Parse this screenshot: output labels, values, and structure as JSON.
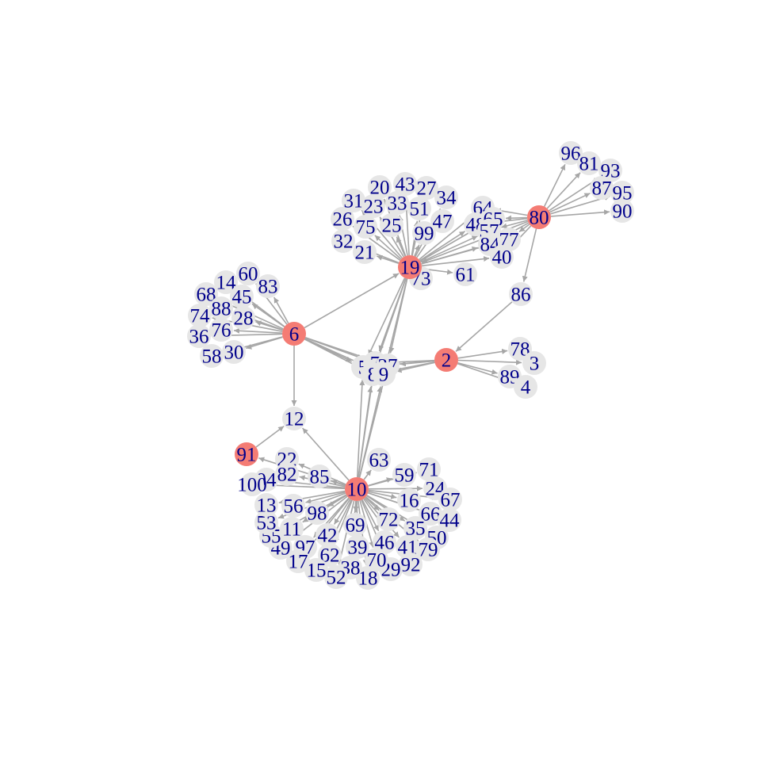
{
  "graph": {
    "directed": true,
    "colors": {
      "hub_fill": "#f47c74",
      "leaf_fill": "#e6e6e6",
      "edge": "#a6a6a6",
      "label": "#00008b"
    },
    "hubs": [
      "19",
      "80",
      "6",
      "2",
      "91",
      "10"
    ],
    "nodes": [
      {
        "id": "19"
      },
      {
        "id": "80"
      },
      {
        "id": "6"
      },
      {
        "id": "2"
      },
      {
        "id": "91"
      },
      {
        "id": "10"
      },
      {
        "id": "12"
      },
      {
        "id": "86"
      },
      {
        "id": "5"
      },
      {
        "id": "7"
      },
      {
        "id": "37"
      },
      {
        "id": "8"
      },
      {
        "id": "9"
      },
      {
        "id": "31"
      },
      {
        "id": "20"
      },
      {
        "id": "43"
      },
      {
        "id": "27"
      },
      {
        "id": "23"
      },
      {
        "id": "33"
      },
      {
        "id": "51"
      },
      {
        "id": "34"
      },
      {
        "id": "26"
      },
      {
        "id": "75"
      },
      {
        "id": "25"
      },
      {
        "id": "47"
      },
      {
        "id": "99"
      },
      {
        "id": "32"
      },
      {
        "id": "21"
      },
      {
        "id": "73"
      },
      {
        "id": "61"
      },
      {
        "id": "64"
      },
      {
        "id": "48"
      },
      {
        "id": "65"
      },
      {
        "id": "57"
      },
      {
        "id": "84"
      },
      {
        "id": "77"
      },
      {
        "id": "40"
      },
      {
        "id": "96"
      },
      {
        "id": "81"
      },
      {
        "id": "93"
      },
      {
        "id": "87"
      },
      {
        "id": "95"
      },
      {
        "id": "90"
      },
      {
        "id": "14"
      },
      {
        "id": "60"
      },
      {
        "id": "83"
      },
      {
        "id": "68"
      },
      {
        "id": "45"
      },
      {
        "id": "88"
      },
      {
        "id": "74"
      },
      {
        "id": "28"
      },
      {
        "id": "76"
      },
      {
        "id": "36"
      },
      {
        "id": "58"
      },
      {
        "id": "30"
      },
      {
        "id": "78"
      },
      {
        "id": "3"
      },
      {
        "id": "89"
      },
      {
        "id": "4"
      },
      {
        "id": "22"
      },
      {
        "id": "82"
      },
      {
        "id": "94"
      },
      {
        "id": "100"
      },
      {
        "id": "85"
      },
      {
        "id": "63"
      },
      {
        "id": "59"
      },
      {
        "id": "71"
      },
      {
        "id": "24"
      },
      {
        "id": "16"
      },
      {
        "id": "67"
      },
      {
        "id": "66"
      },
      {
        "id": "44"
      },
      {
        "id": "72"
      },
      {
        "id": "35"
      },
      {
        "id": "50"
      },
      {
        "id": "46"
      },
      {
        "id": "41"
      },
      {
        "id": "79"
      },
      {
        "id": "92"
      },
      {
        "id": "29"
      },
      {
        "id": "70"
      },
      {
        "id": "18"
      },
      {
        "id": "38"
      },
      {
        "id": "39"
      },
      {
        "id": "69"
      },
      {
        "id": "42"
      },
      {
        "id": "62"
      },
      {
        "id": "52"
      },
      {
        "id": "15"
      },
      {
        "id": "97"
      },
      {
        "id": "17"
      },
      {
        "id": "49"
      },
      {
        "id": "55"
      },
      {
        "id": "53"
      },
      {
        "id": "11"
      },
      {
        "id": "13"
      },
      {
        "id": "56"
      },
      {
        "id": "98"
      }
    ],
    "edges": [
      [
        "6",
        "19"
      ],
      [
        "6",
        "12"
      ],
      [
        "6",
        "5"
      ],
      [
        "6",
        "7"
      ],
      [
        "6",
        "8"
      ],
      [
        "6",
        "9"
      ],
      [
        "6",
        "37"
      ],
      [
        "6",
        "14"
      ],
      [
        "6",
        "60"
      ],
      [
        "6",
        "83"
      ],
      [
        "6",
        "68"
      ],
      [
        "6",
        "45"
      ],
      [
        "6",
        "88"
      ],
      [
        "6",
        "74"
      ],
      [
        "6",
        "28"
      ],
      [
        "6",
        "76"
      ],
      [
        "6",
        "36"
      ],
      [
        "6",
        "58"
      ],
      [
        "6",
        "30"
      ],
      [
        "19",
        "5"
      ],
      [
        "19",
        "7"
      ],
      [
        "19",
        "37"
      ],
      [
        "19",
        "8"
      ],
      [
        "19",
        "9"
      ],
      [
        "19",
        "31"
      ],
      [
        "19",
        "20"
      ],
      [
        "19",
        "43"
      ],
      [
        "19",
        "27"
      ],
      [
        "19",
        "23"
      ],
      [
        "19",
        "33"
      ],
      [
        "19",
        "51"
      ],
      [
        "19",
        "34"
      ],
      [
        "19",
        "26"
      ],
      [
        "19",
        "75"
      ],
      [
        "19",
        "25"
      ],
      [
        "19",
        "47"
      ],
      [
        "19",
        "99"
      ],
      [
        "19",
        "32"
      ],
      [
        "19",
        "21"
      ],
      [
        "19",
        "73"
      ],
      [
        "19",
        "61"
      ],
      [
        "19",
        "64"
      ],
      [
        "19",
        "48"
      ],
      [
        "19",
        "65"
      ],
      [
        "19",
        "57"
      ],
      [
        "19",
        "84"
      ],
      [
        "19",
        "77"
      ],
      [
        "19",
        "40"
      ],
      [
        "80",
        "19"
      ],
      [
        "80",
        "64"
      ],
      [
        "80",
        "48"
      ],
      [
        "80",
        "65"
      ],
      [
        "80",
        "57"
      ],
      [
        "80",
        "84"
      ],
      [
        "80",
        "77"
      ],
      [
        "80",
        "40"
      ],
      [
        "80",
        "96"
      ],
      [
        "80",
        "81"
      ],
      [
        "80",
        "93"
      ],
      [
        "80",
        "87"
      ],
      [
        "80",
        "95"
      ],
      [
        "80",
        "90"
      ],
      [
        "80",
        "86"
      ],
      [
        "86",
        "2"
      ],
      [
        "2",
        "5"
      ],
      [
        "2",
        "7"
      ],
      [
        "2",
        "37"
      ],
      [
        "2",
        "8"
      ],
      [
        "2",
        "9"
      ],
      [
        "2",
        "78"
      ],
      [
        "2",
        "3"
      ],
      [
        "2",
        "89"
      ],
      [
        "2",
        "4"
      ],
      [
        "91",
        "12"
      ],
      [
        "10",
        "12"
      ],
      [
        "10",
        "91"
      ],
      [
        "10",
        "5"
      ],
      [
        "10",
        "7"
      ],
      [
        "10",
        "37"
      ],
      [
        "10",
        "8"
      ],
      [
        "10",
        "9"
      ],
      [
        "10",
        "22"
      ],
      [
        "10",
        "82"
      ],
      [
        "10",
        "94"
      ],
      [
        "10",
        "100"
      ],
      [
        "10",
        "85"
      ],
      [
        "10",
        "63"
      ],
      [
        "10",
        "59"
      ],
      [
        "10",
        "71"
      ],
      [
        "10",
        "24"
      ],
      [
        "10",
        "16"
      ],
      [
        "10",
        "67"
      ],
      [
        "10",
        "66"
      ],
      [
        "10",
        "44"
      ],
      [
        "10",
        "72"
      ],
      [
        "10",
        "35"
      ],
      [
        "10",
        "50"
      ],
      [
        "10",
        "46"
      ],
      [
        "10",
        "41"
      ],
      [
        "10",
        "79"
      ],
      [
        "10",
        "92"
      ],
      [
        "10",
        "29"
      ],
      [
        "10",
        "70"
      ],
      [
        "10",
        "18"
      ],
      [
        "10",
        "38"
      ],
      [
        "10",
        "39"
      ],
      [
        "10",
        "69"
      ],
      [
        "10",
        "42"
      ],
      [
        "10",
        "62"
      ],
      [
        "10",
        "52"
      ],
      [
        "10",
        "15"
      ],
      [
        "10",
        "97"
      ],
      [
        "10",
        "17"
      ],
      [
        "10",
        "49"
      ],
      [
        "10",
        "55"
      ],
      [
        "10",
        "53"
      ],
      [
        "10",
        "11"
      ],
      [
        "10",
        "13"
      ],
      [
        "10",
        "56"
      ],
      [
        "10",
        "98"
      ]
    ]
  }
}
